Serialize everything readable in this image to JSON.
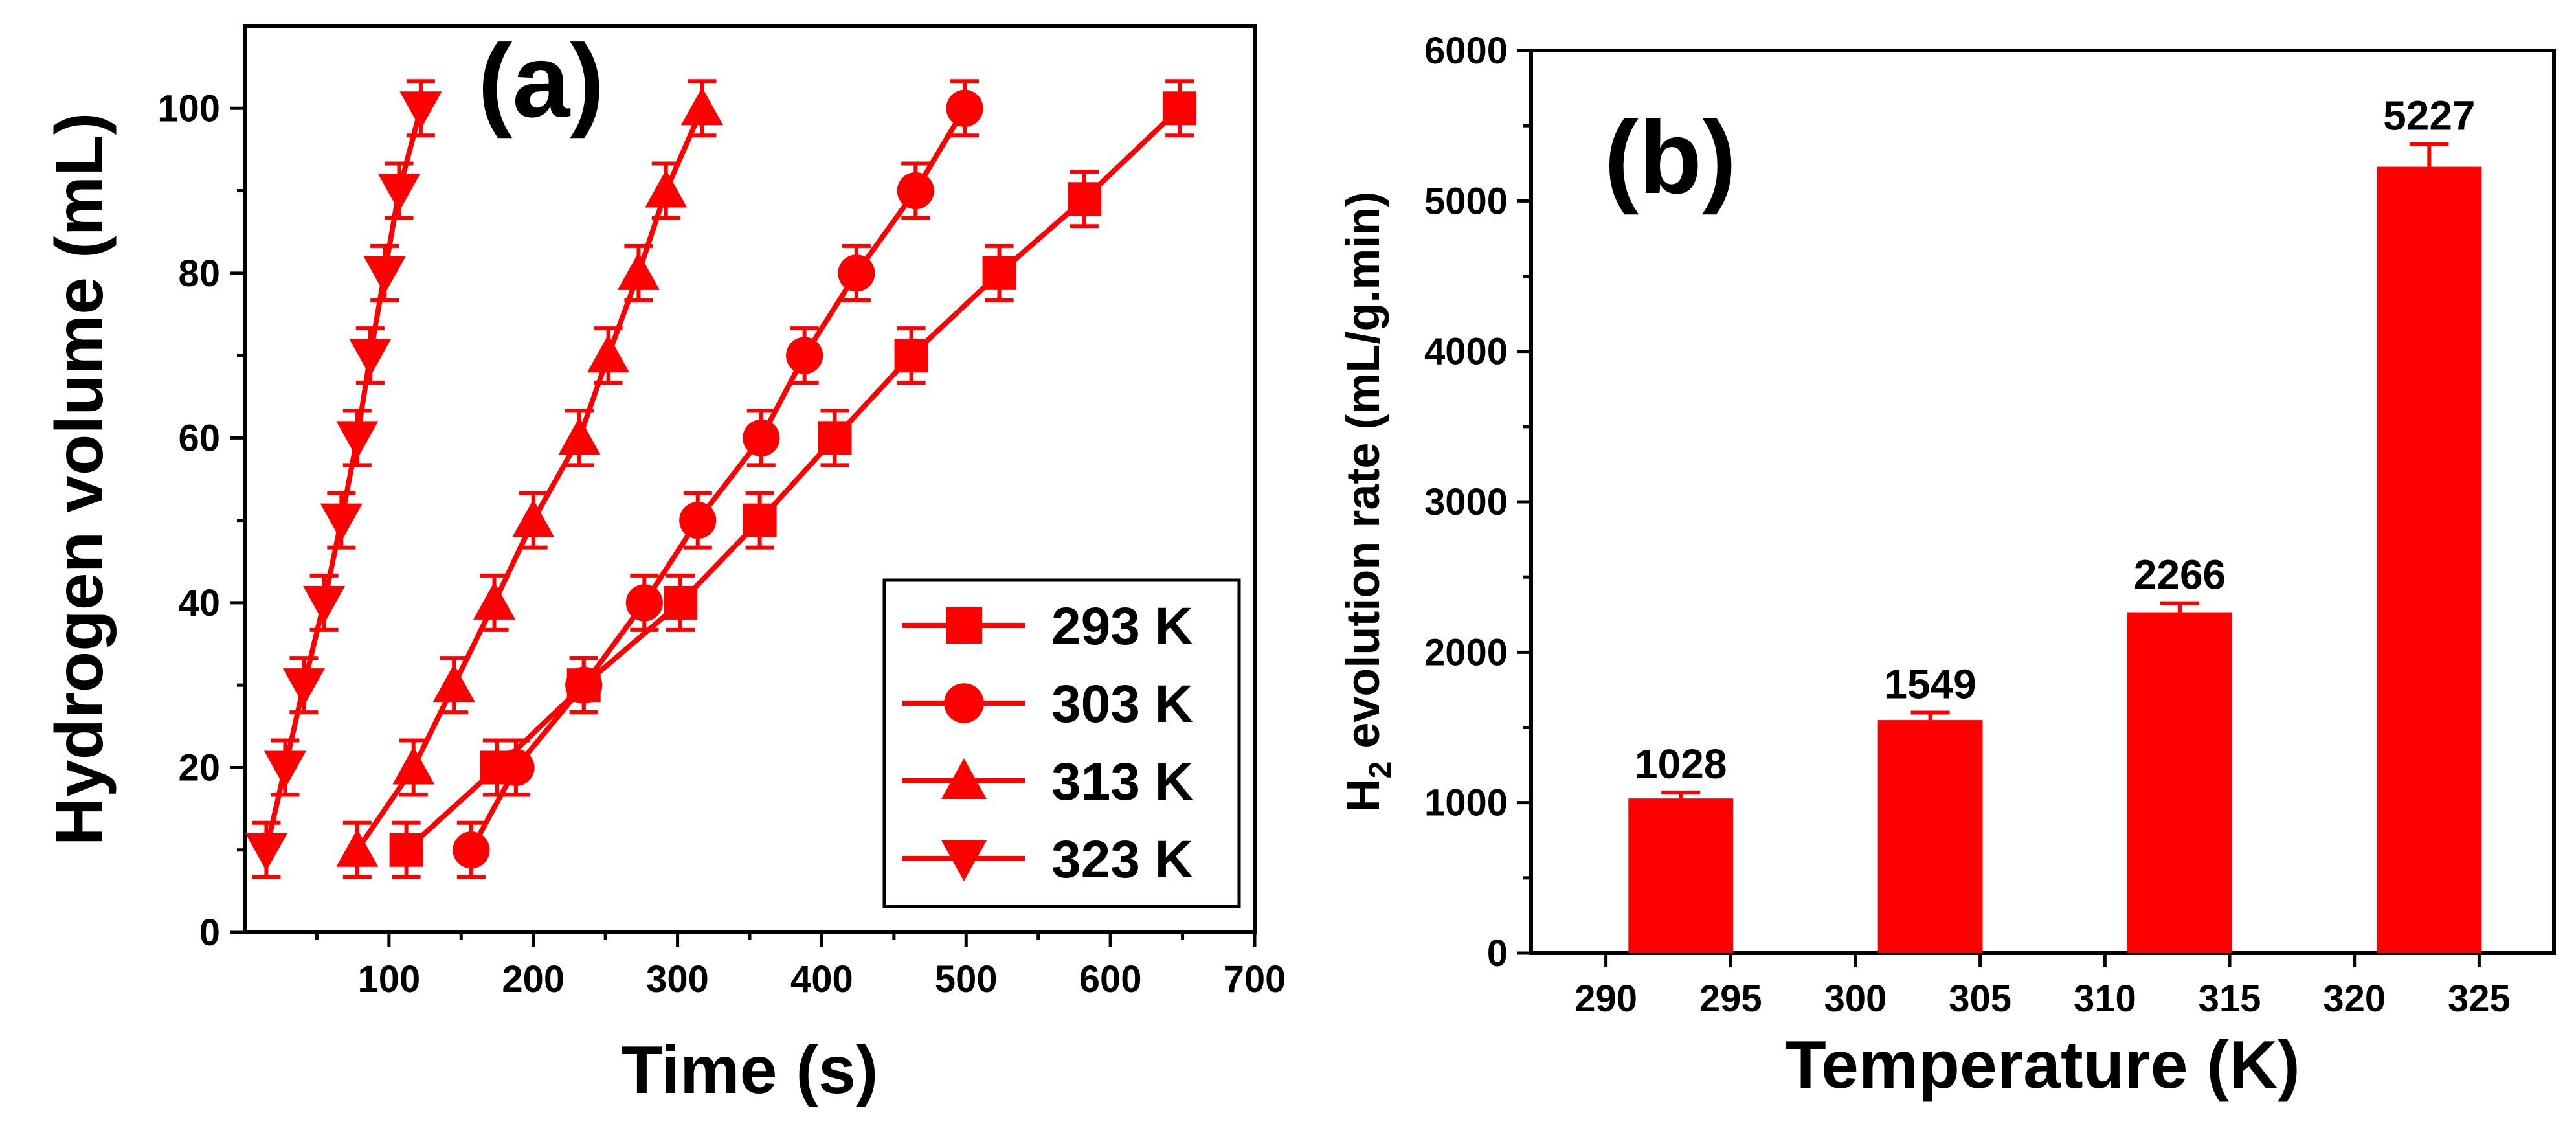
{
  "chart_data": [
    {
      "type": "line",
      "panel_label": "(a)",
      "xlabel": "Time (s)",
      "ylabel": "Hydrogen volume (mL)",
      "xlim": [
        0,
        700
      ],
      "ylim": [
        0,
        110
      ],
      "xticks": [
        100,
        200,
        300,
        400,
        500,
        600,
        700
      ],
      "yticks": [
        0,
        20,
        40,
        60,
        80,
        100
      ],
      "color": "#ff0000",
      "legend_position": "bottom-right",
      "series": [
        {
          "name": "293 K",
          "marker": "square",
          "x": [
            112,
            175,
            235,
            302,
            357,
            409,
            462,
            523,
            582,
            648
          ],
          "y": [
            10,
            20,
            30,
            40,
            50,
            60,
            70,
            80,
            89,
            100
          ]
        },
        {
          "name": "303 K",
          "marker": "circle",
          "x": [
            157,
            188,
            235,
            277,
            314,
            358,
            388,
            424,
            465,
            499
          ],
          "y": [
            10,
            20,
            30,
            40,
            50,
            60,
            70,
            80,
            90,
            100
          ]
        },
        {
          "name": "313 K",
          "marker": "triangle-up",
          "x": [
            78,
            117,
            145,
            173,
            200,
            232,
            252,
            273,
            292,
            317
          ],
          "y": [
            10,
            20,
            30,
            40,
            50,
            60,
            70,
            80,
            90,
            100
          ]
        },
        {
          "name": "323 K",
          "marker": "triangle-down",
          "x": [
            15,
            28,
            41,
            55,
            67,
            78,
            87,
            97,
            107,
            122
          ],
          "y": [
            10,
            20,
            30,
            40,
            50,
            60,
            70,
            80,
            90,
            100
          ]
        }
      ]
    },
    {
      "type": "bar",
      "panel_label": "(b)",
      "xlabel": "Temperature (K)",
      "ylabel_main": "H",
      "ylabel_sub": "2",
      "ylabel_rest": " evolution rate (mL/g.min)",
      "xlim": [
        287,
        328
      ],
      "ylim": [
        0,
        6000
      ],
      "xticks": [
        290,
        295,
        300,
        305,
        310,
        315,
        320,
        325
      ],
      "yticks": [
        0,
        1000,
        2000,
        3000,
        4000,
        5000,
        6000
      ],
      "color": "#ff0000",
      "bars": [
        {
          "x": 293,
          "value": 1028,
          "label": "1028",
          "error": 40
        },
        {
          "x": 303,
          "value": 1549,
          "label": "1549",
          "error": 50
        },
        {
          "x": 313,
          "value": 2266,
          "label": "2266",
          "error": 60
        },
        {
          "x": 323,
          "value": 5227,
          "label": "5227",
          "error": 150
        }
      ]
    }
  ]
}
